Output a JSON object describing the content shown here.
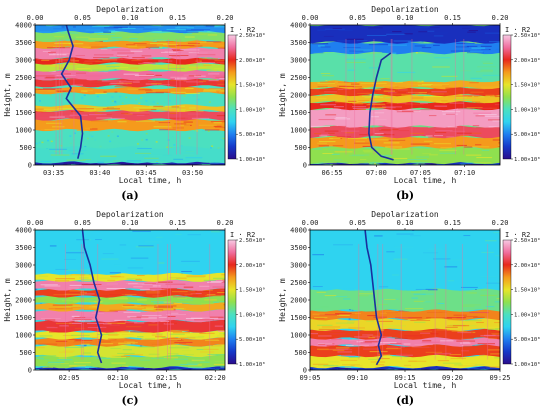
{
  "chart_data": [
    {
      "type": "heatmap",
      "label": "(a)",
      "top_axis_label": "Depolarization",
      "top_ticks": [
        "0.00",
        "0.05",
        "0.10",
        "0.15",
        "0.20"
      ],
      "top_range": [
        0.0,
        0.2
      ],
      "ylabel": "Height, m",
      "y_ticks": [
        "0",
        "500",
        "1000",
        "1500",
        "2000",
        "2500",
        "3000",
        "3500",
        "4000"
      ],
      "ylim": [
        0,
        4000
      ],
      "xlabel": "Local time, h",
      "x_ticks": [
        "03:35",
        "03:40",
        "03:45",
        "03:50"
      ],
      "x_range_min": [
        213,
        233.5
      ],
      "colorbar_title": "I · R2",
      "colorbar_ticks": [
        "1.00×10⁰",
        "5.00×10⁸",
        "1.00×10⁹",
        "1.50×10⁹",
        "2.00×10⁹",
        "2.50×10⁹"
      ],
      "colorbar_range": [
        0,
        2500000000
      ],
      "background_level": 0.4,
      "layers": [
        {
          "bottom": 0,
          "top": 80,
          "level": 0.05
        },
        {
          "bottom": 80,
          "top": 500,
          "level": 0.38
        },
        {
          "bottom": 1000,
          "top": 1300,
          "level": 0.7
        },
        {
          "bottom": 1300,
          "top": 1550,
          "level": 0.85
        },
        {
          "bottom": 1550,
          "top": 1700,
          "level": 0.65
        },
        {
          "bottom": 2050,
          "top": 2200,
          "level": 0.7
        },
        {
          "bottom": 2250,
          "top": 2450,
          "level": 0.82
        },
        {
          "bottom": 2450,
          "top": 2700,
          "level": 0.9
        },
        {
          "bottom": 2700,
          "top": 2900,
          "level": 0.55
        },
        {
          "bottom": 2900,
          "top": 3050,
          "level": 0.8
        },
        {
          "bottom": 3050,
          "top": 3350,
          "level": 0.92
        },
        {
          "bottom": 3350,
          "top": 3550,
          "level": 0.7
        },
        {
          "bottom": 3550,
          "top": 3800,
          "level": 0.48
        },
        {
          "bottom": 3800,
          "top": 4000,
          "level": 0.22
        }
      ],
      "depolarization_profile": [
        {
          "height": 180,
          "value": 0.045
        },
        {
          "height": 500,
          "value": 0.048
        },
        {
          "height": 900,
          "value": 0.05
        },
        {
          "height": 1400,
          "value": 0.048
        },
        {
          "height": 1900,
          "value": 0.033
        },
        {
          "height": 2200,
          "value": 0.038
        },
        {
          "height": 2600,
          "value": 0.028
        },
        {
          "height": 3000,
          "value": 0.036
        },
        {
          "height": 3400,
          "value": 0.04
        },
        {
          "height": 3800,
          "value": 0.035
        },
        {
          "height": 4000,
          "value": 0.033
        }
      ]
    },
    {
      "type": "heatmap",
      "label": "(b)",
      "top_axis_label": "Depolarization",
      "top_ticks": [
        "0.00",
        "0.05",
        "0.10",
        "0.15",
        "0.20"
      ],
      "top_range": [
        0.0,
        0.2
      ],
      "ylabel": "Height, m",
      "y_ticks": [
        "0",
        "500",
        "1000",
        "1500",
        "2000",
        "2500",
        "3000",
        "3500",
        "4000"
      ],
      "ylim": [
        0,
        4000
      ],
      "xlabel": "Local time, h",
      "x_ticks": [
        "06:55",
        "07:00",
        "07:05",
        "07:10"
      ],
      "x_range_min": [
        412.5,
        434
      ],
      "colorbar_title": "I · R2",
      "colorbar_ticks": [
        "1.00×10⁰",
        "5.00×10⁸",
        "1.00×10⁹",
        "1.50×10⁹",
        "2.00×10⁹",
        "2.50×10⁹"
      ],
      "colorbar_range": [
        0,
        2500000000
      ],
      "background_level": 0.45,
      "layers": [
        {
          "bottom": 0,
          "top": 60,
          "level": 0.08
        },
        {
          "bottom": 60,
          "top": 500,
          "level": 0.5
        },
        {
          "bottom": 500,
          "top": 800,
          "level": 0.7
        },
        {
          "bottom": 800,
          "top": 1100,
          "level": 0.85
        },
        {
          "bottom": 1100,
          "top": 1600,
          "level": 0.95
        },
        {
          "bottom": 1600,
          "top": 1800,
          "level": 0.8
        },
        {
          "bottom": 1800,
          "top": 2000,
          "level": 0.65
        },
        {
          "bottom": 2000,
          "top": 2200,
          "level": 0.78
        },
        {
          "bottom": 2200,
          "top": 2400,
          "level": 0.68
        },
        {
          "bottom": 2400,
          "top": 3200,
          "level": 0.42
        },
        {
          "bottom": 3200,
          "top": 3500,
          "level": 0.2
        },
        {
          "bottom": 3500,
          "top": 4000,
          "level": 0.08
        }
      ],
      "depolarization_profile": [
        {
          "height": 150,
          "value": 0.088
        },
        {
          "height": 250,
          "value": 0.075
        },
        {
          "height": 500,
          "value": 0.065
        },
        {
          "height": 900,
          "value": 0.062
        },
        {
          "height": 1500,
          "value": 0.063
        },
        {
          "height": 2000,
          "value": 0.066
        },
        {
          "height": 2500,
          "value": 0.07
        },
        {
          "height": 3000,
          "value": 0.075
        },
        {
          "height": 3200,
          "value": 0.085
        }
      ]
    },
    {
      "type": "heatmap",
      "label": "(c)",
      "top_axis_label": "Depolarization",
      "top_ticks": [
        "0.00",
        "0.05",
        "0.10",
        "0.15",
        "0.20"
      ],
      "top_range": [
        0.0,
        0.2
      ],
      "ylabel": "Height, m",
      "y_ticks": [
        "0",
        "500",
        "1000",
        "1500",
        "2000",
        "2500",
        "3000",
        "3500",
        "4000"
      ],
      "ylim": [
        0,
        4000
      ],
      "xlabel": "Local time, h",
      "x_ticks": [
        "02:05",
        "02:10",
        "02:15",
        "02:20"
      ],
      "x_range_min": [
        121.5,
        141
      ],
      "colorbar_title": "I · R2",
      "colorbar_ticks": [
        "1.00×10⁰",
        "5.00×10⁸",
        "1.00×10⁹",
        "1.50×10⁹",
        "2.00×10⁹",
        "2.50×10⁹"
      ],
      "colorbar_range": [
        0,
        2500000000
      ],
      "background_level": 0.33,
      "layers": [
        {
          "bottom": 0,
          "top": 80,
          "level": 0.08
        },
        {
          "bottom": 80,
          "top": 400,
          "level": 0.5
        },
        {
          "bottom": 400,
          "top": 700,
          "level": 0.58
        },
        {
          "bottom": 700,
          "top": 900,
          "level": 0.72
        },
        {
          "bottom": 900,
          "top": 1100,
          "level": 0.6
        },
        {
          "bottom": 1100,
          "top": 1400,
          "level": 0.82
        },
        {
          "bottom": 1400,
          "top": 1700,
          "level": 0.92
        },
        {
          "bottom": 1700,
          "top": 1900,
          "level": 0.68
        },
        {
          "bottom": 1900,
          "top": 2100,
          "level": 0.5
        },
        {
          "bottom": 2100,
          "top": 2300,
          "level": 0.78
        },
        {
          "bottom": 2300,
          "top": 2550,
          "level": 0.92
        },
        {
          "bottom": 2550,
          "top": 2750,
          "level": 0.6
        },
        {
          "bottom": 2750,
          "top": 4000,
          "level": 0.3
        }
      ],
      "depolarization_profile": [
        {
          "height": 200,
          "value": 0.07
        },
        {
          "height": 500,
          "value": 0.066
        },
        {
          "height": 1000,
          "value": 0.07
        },
        {
          "height": 1500,
          "value": 0.064
        },
        {
          "height": 2000,
          "value": 0.068
        },
        {
          "height": 2500,
          "value": 0.062
        },
        {
          "height": 3000,
          "value": 0.058
        },
        {
          "height": 3500,
          "value": 0.052
        },
        {
          "height": 4000,
          "value": 0.05
        }
      ]
    },
    {
      "type": "heatmap",
      "label": "(d)",
      "top_axis_label": "Depolarization",
      "top_ticks": [
        "0.00",
        "0.05",
        "0.10",
        "0.15",
        "0.20"
      ],
      "top_range": [
        0.0,
        0.2
      ],
      "ylabel": "Height, m",
      "y_ticks": [
        "0",
        "500",
        "1000",
        "1500",
        "2000",
        "2500",
        "3000",
        "3500",
        "4000"
      ],
      "ylim": [
        0,
        4000
      ],
      "xlabel": "Local time, h",
      "x_ticks": [
        "09:05",
        "09:10",
        "09:15",
        "09:20",
        "09:25"
      ],
      "x_range_min": [
        545,
        565
      ],
      "colorbar_title": "I · R2",
      "colorbar_ticks": [
        "1.00×10⁰",
        "5.00×10⁸",
        "1.00×10⁹",
        "1.50×10⁹",
        "2.00×10⁹",
        "2.50×10⁹"
      ],
      "colorbar_range": [
        0,
        2500000000
      ],
      "background_level": 0.3,
      "layers": [
        {
          "bottom": 0,
          "top": 80,
          "level": 0.08
        },
        {
          "bottom": 80,
          "top": 400,
          "level": 0.6
        },
        {
          "bottom": 400,
          "top": 700,
          "level": 0.78
        },
        {
          "bottom": 700,
          "top": 900,
          "level": 0.92
        },
        {
          "bottom": 900,
          "top": 1150,
          "level": 0.78
        },
        {
          "bottom": 1150,
          "top": 1450,
          "level": 0.62
        },
        {
          "bottom": 1450,
          "top": 1700,
          "level": 0.72
        },
        {
          "bottom": 1700,
          "top": 2300,
          "level": 0.45
        },
        {
          "bottom": 2300,
          "top": 4000,
          "level": 0.3
        }
      ],
      "depolarization_profile": [
        {
          "height": 150,
          "value": 0.07
        },
        {
          "height": 400,
          "value": 0.075
        },
        {
          "height": 700,
          "value": 0.072
        },
        {
          "height": 1000,
          "value": 0.075
        },
        {
          "height": 1500,
          "value": 0.07
        },
        {
          "height": 2000,
          "value": 0.068
        },
        {
          "height": 2500,
          "value": 0.066
        },
        {
          "height": 3000,
          "value": 0.064
        },
        {
          "height": 3500,
          "value": 0.06
        },
        {
          "height": 4000,
          "value": 0.058
        }
      ]
    }
  ],
  "colormap": [
    "#2a0c8c",
    "#1538c9",
    "#1f7ff0",
    "#2fd3f0",
    "#4be0c0",
    "#8fe04f",
    "#e7e52a",
    "#f59a1c",
    "#e8281c",
    "#f06e9e",
    "#f7c9e3"
  ],
  "profile_color": "#1a2f9e"
}
